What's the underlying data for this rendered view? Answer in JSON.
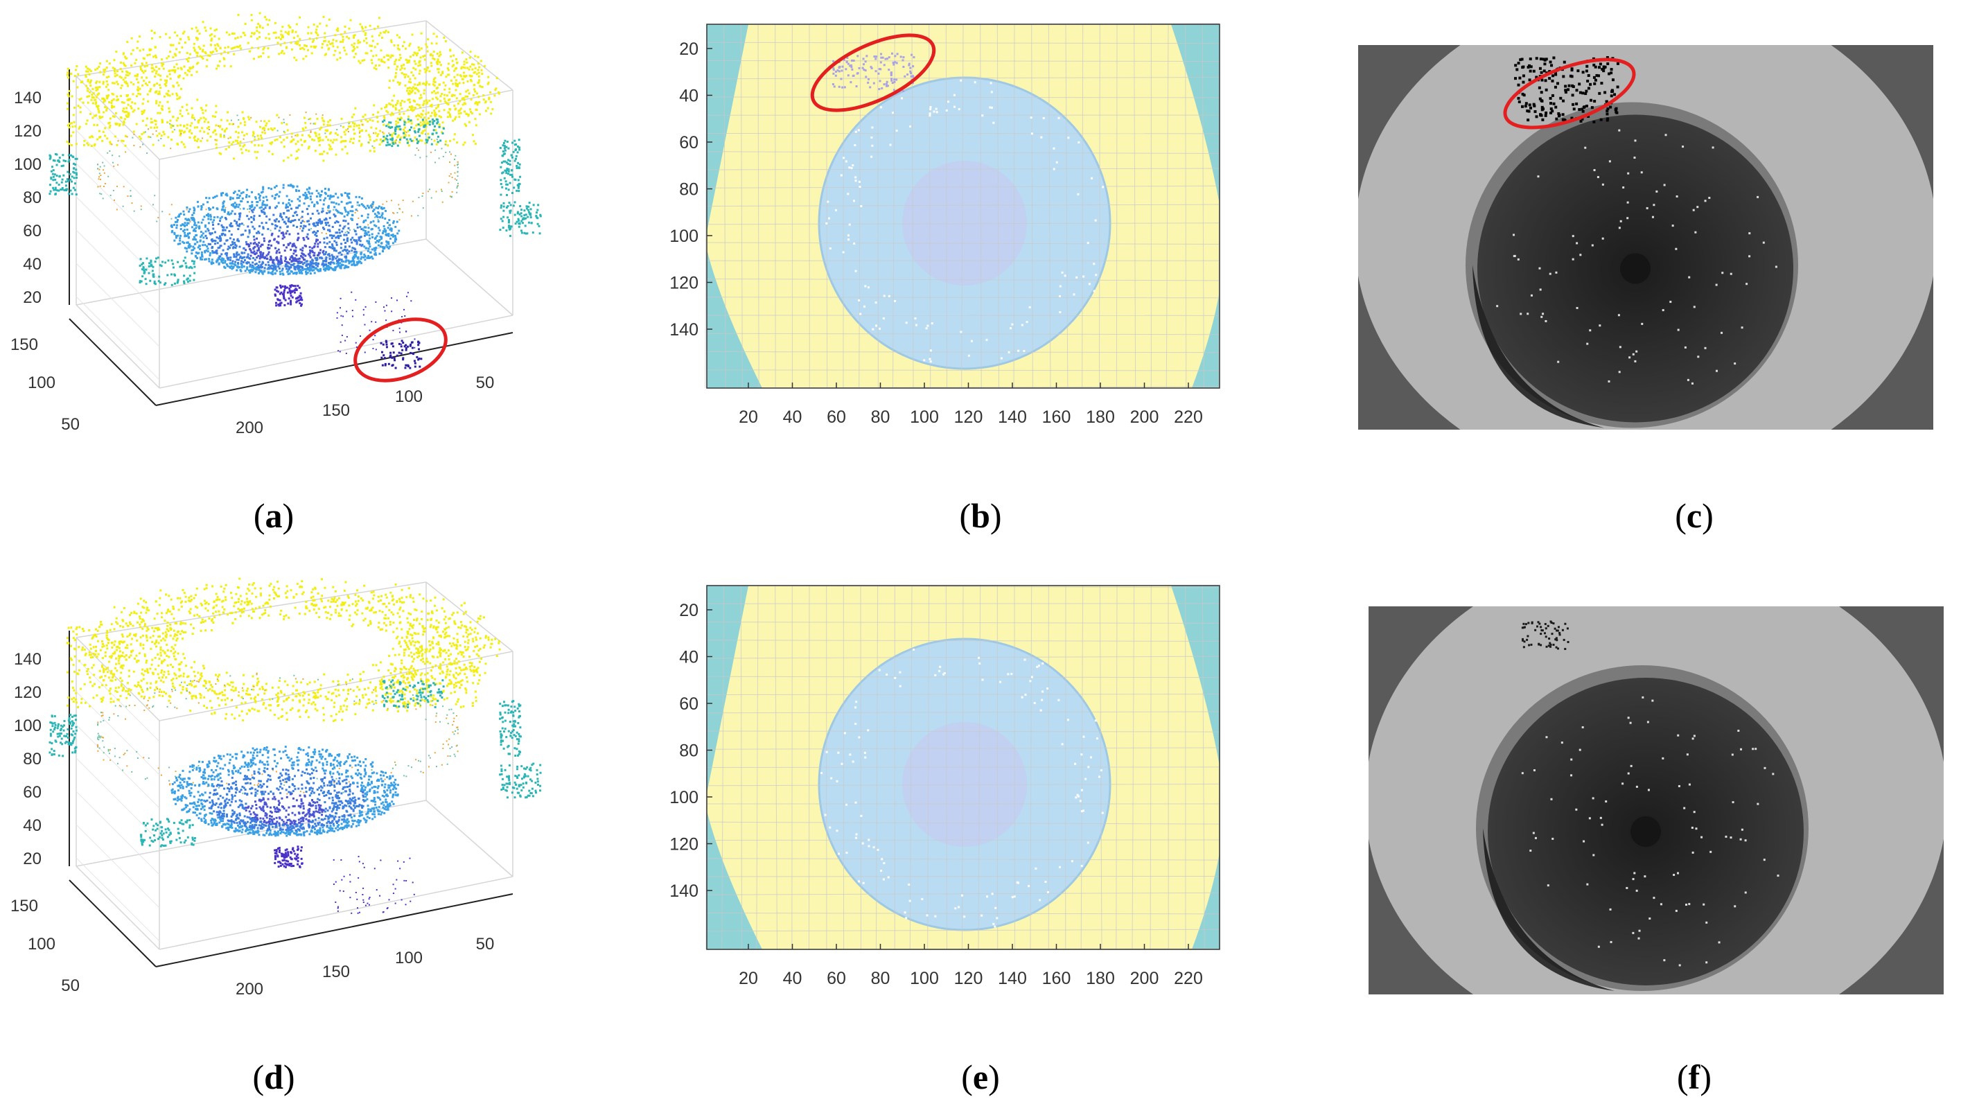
{
  "figure": {
    "panels": [
      {
        "id": "a",
        "caption_open": "(",
        "caption_letter": "a",
        "caption_close": ")",
        "kind": "3d-point-cloud",
        "z_ticks": [
          "140",
          "120",
          "100",
          "80",
          "60",
          "40",
          "20"
        ],
        "y_ticks": [
          "150",
          "100",
          "50"
        ],
        "x_ticks": [
          "200",
          "150",
          "100",
          "50"
        ],
        "has_highlight": true
      },
      {
        "id": "b",
        "caption_open": "(",
        "caption_letter": "b",
        "caption_close": ")",
        "kind": "2d-depth-map",
        "y_ticks": [
          "20",
          "40",
          "60",
          "80",
          "100",
          "120",
          "140"
        ],
        "x_ticks": [
          "20",
          "40",
          "60",
          "80",
          "100",
          "120",
          "140",
          "160",
          "180",
          "200",
          "220"
        ],
        "has_highlight": true
      },
      {
        "id": "c",
        "caption_open": "(",
        "caption_letter": "c",
        "caption_close": ")",
        "kind": "grayscale-depth-image",
        "has_highlight": true
      },
      {
        "id": "d",
        "caption_open": "(",
        "caption_letter": "d",
        "caption_close": ")",
        "kind": "3d-point-cloud",
        "z_ticks": [
          "140",
          "120",
          "100",
          "80",
          "60",
          "40",
          "20"
        ],
        "y_ticks": [
          "150",
          "100",
          "50"
        ],
        "x_ticks": [
          "200",
          "150",
          "100",
          "50"
        ],
        "has_highlight": false
      },
      {
        "id": "e",
        "caption_open": "(",
        "caption_letter": "e",
        "caption_close": ")",
        "kind": "2d-depth-map",
        "y_ticks": [
          "20",
          "40",
          "60",
          "80",
          "100",
          "120",
          "140"
        ],
        "x_ticks": [
          "20",
          "40",
          "60",
          "80",
          "100",
          "120",
          "140",
          "160",
          "180",
          "200",
          "220"
        ],
        "has_highlight": false
      },
      {
        "id": "f",
        "caption_open": "(",
        "caption_letter": "f",
        "caption_close": ")",
        "kind": "grayscale-depth-image",
        "has_highlight": false
      }
    ],
    "colors": {
      "point_yellow": "#f2ee10",
      "point_blue": "#3c8fe0",
      "point_cyan": "#2bb5b5",
      "point_purple": "#4a2fc8",
      "map_yellow": "#fbf6b0",
      "map_blue": "#b9dcf2",
      "map_cyan": "#8fd3d6",
      "highlight_red": "#e41f1f",
      "gray_outer": "#5a5a5a",
      "gray_ring": "#b5b5b5",
      "gray_inner": "#2e2e2e"
    }
  }
}
